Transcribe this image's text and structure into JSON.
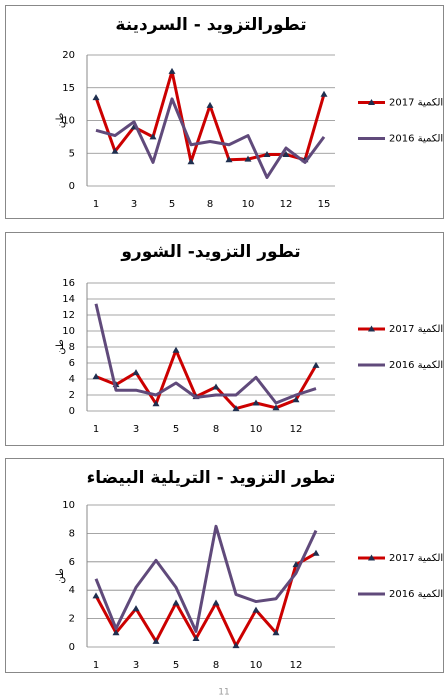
{
  "chart_data": [
    {
      "type": "line",
      "title": "تطورالتزويد - السردينة",
      "ylabel": "طن",
      "categories": [
        "1",
        null,
        "3",
        null,
        "5",
        null,
        "8",
        null,
        "10",
        null,
        "12",
        null,
        "15"
      ],
      "series": [
        {
          "name": "الكمية 2017",
          "color": "#cc0000",
          "values": [
            13.5,
            5.3,
            9,
            7.5,
            17.5,
            3.7,
            12.3,
            4,
            4.1,
            4.8,
            4.8,
            4,
            14
          ]
        },
        {
          "name": "الكمية 2016",
          "color": "#604a7b",
          "values": [
            8.5,
            7.7,
            9.8,
            3.6,
            13.3,
            6.3,
            6.8,
            6.3,
            7.7,
            1.3,
            5.8,
            3.6,
            7.5
          ]
        }
      ],
      "ylim": [
        0,
        20
      ],
      "yticks": [
        0,
        5,
        10,
        15,
        20
      ],
      "grid": true
    },
    {
      "type": "line",
      "title": "تطور التزويد- الشورو",
      "ylabel": "طن",
      "categories": [
        "1",
        null,
        "3",
        null,
        "5",
        null,
        "8",
        null,
        "10",
        null,
        "12",
        null
      ],
      "series": [
        {
          "name": "الكمية 2017",
          "color": "#cc0000",
          "values": [
            4.3,
            3.3,
            4.8,
            0.9,
            7.6,
            1.8,
            3.0,
            0.3,
            1.0,
            0.4,
            1.4,
            5.7
          ]
        },
        {
          "name": "الكمية 2016",
          "color": "#604a7b",
          "values": [
            13.4,
            2.6,
            2.6,
            2.0,
            3.5,
            1.7,
            2.0,
            2.0,
            4.2,
            1.0,
            2.0,
            2.8
          ]
        }
      ],
      "ylim": [
        0,
        16
      ],
      "yticks": [
        0,
        2,
        4,
        6,
        8,
        10,
        12,
        14,
        16
      ],
      "grid": true
    },
    {
      "type": "line",
      "title": "تطور التزويد - التريلية البيضاء",
      "ylabel": "طن",
      "categories": [
        "1",
        null,
        "3",
        null,
        "5",
        null,
        "8",
        null,
        "10",
        null,
        "12",
        null
      ],
      "series": [
        {
          "name": "الكمية 2017",
          "color": "#cc0000",
          "values": [
            3.6,
            1.0,
            2.7,
            0.4,
            3.1,
            0.6,
            3.1,
            0.1,
            2.6,
            1.0,
            5.8,
            6.6
          ]
        },
        {
          "name": "الكمية 2016",
          "color": "#604a7b",
          "values": [
            4.8,
            1.3,
            4.2,
            6.1,
            4.2,
            1.1,
            8.5,
            3.7,
            3.2,
            3.4,
            5.2,
            8.2
          ]
        }
      ],
      "ylim": [
        0,
        10
      ],
      "yticks": [
        0,
        2,
        4,
        6,
        8,
        10
      ],
      "grid": true
    }
  ],
  "page_number": "11"
}
